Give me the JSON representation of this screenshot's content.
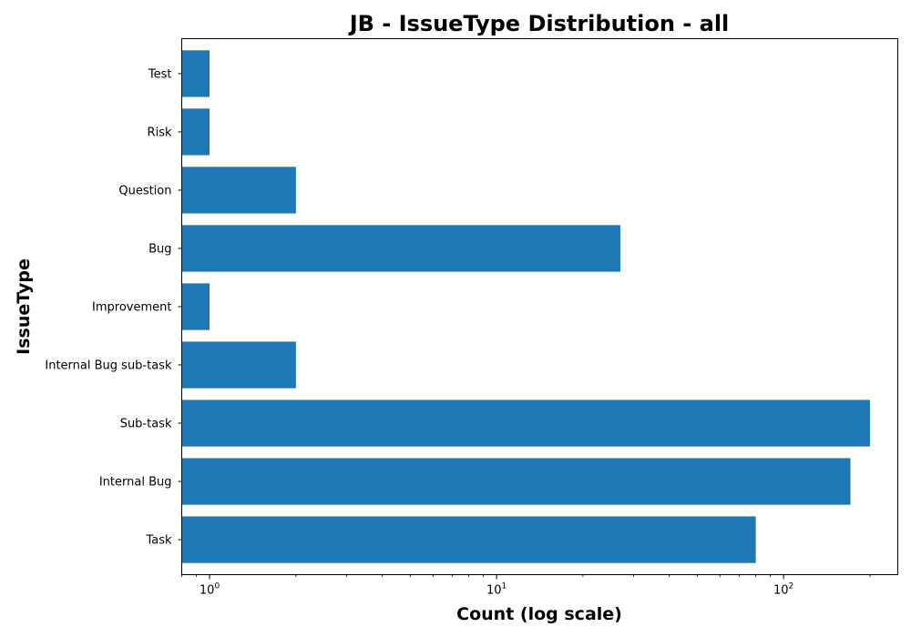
{
  "chart_data": {
    "type": "bar",
    "orientation": "horizontal",
    "title": "JB - IssueType Distribution - all",
    "xlabel": "Count (log scale)",
    "ylabel": "IssueType",
    "xscale": "log",
    "xlim": [
      0.8,
      250
    ],
    "xticks": [
      {
        "value": 1,
        "base": "10",
        "exp": "0"
      },
      {
        "value": 10,
        "base": "10",
        "exp": "1"
      },
      {
        "value": 100,
        "base": "10",
        "exp": "2"
      }
    ],
    "categories": [
      "Task",
      "Internal Bug",
      "Sub-task",
      "Internal Bug sub-task",
      "Improvement",
      "Bug",
      "Question",
      "Risk",
      "Test"
    ],
    "values": [
      80,
      171,
      200,
      2,
      1,
      27,
      2,
      1,
      1
    ],
    "color": "#1f77b4",
    "grid": false,
    "legend": "none"
  }
}
